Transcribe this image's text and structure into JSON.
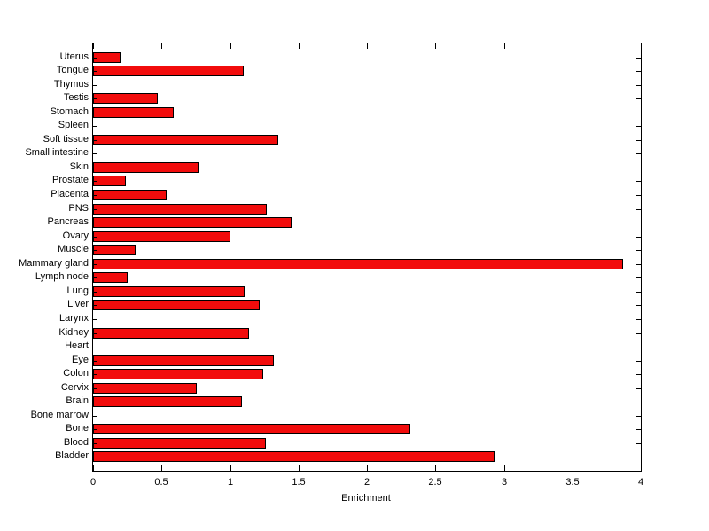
{
  "chart_data": {
    "type": "bar",
    "orientation": "horizontal",
    "title": "",
    "xlabel": "Enrichment",
    "ylabel": "",
    "xlim": [
      0,
      4
    ],
    "xticks": [
      0,
      0.5,
      1,
      1.5,
      2,
      2.5,
      3,
      3.5,
      4
    ],
    "xtick_labels": [
      "0",
      "0.5",
      "1",
      "1.5",
      "2",
      "2.5",
      "3",
      "3.5",
      "4"
    ],
    "grid": false,
    "legend": "none",
    "bar_color": "#f20c0c",
    "bar_edge_color": "#000000",
    "category_order": "top-to-bottom",
    "categories": [
      "Uterus",
      "Tongue",
      "Thymus",
      "Testis",
      "Stomach",
      "Spleen",
      "Soft tissue",
      "Small intestine",
      "Skin",
      "Prostate",
      "Placenta",
      "PNS",
      "Pancreas",
      "Ovary",
      "Muscle",
      "Mammary gland",
      "Lymph node",
      "Lung",
      "Liver",
      "Larynx",
      "Kidney",
      "Heart",
      "Eye",
      "Colon",
      "Cervix",
      "Brain",
      "Bone marrow",
      "Bone",
      "Blood",
      "Bladder"
    ],
    "values": [
      0.2,
      1.1,
      0,
      0.47,
      0.59,
      0,
      1.35,
      0,
      0.77,
      0.24,
      0.54,
      1.27,
      1.45,
      1.0,
      0.31,
      3.87,
      0.25,
      1.11,
      1.22,
      0,
      1.14,
      0,
      1.32,
      1.24,
      0.76,
      1.09,
      0,
      2.32,
      1.26,
      2.93
    ]
  }
}
